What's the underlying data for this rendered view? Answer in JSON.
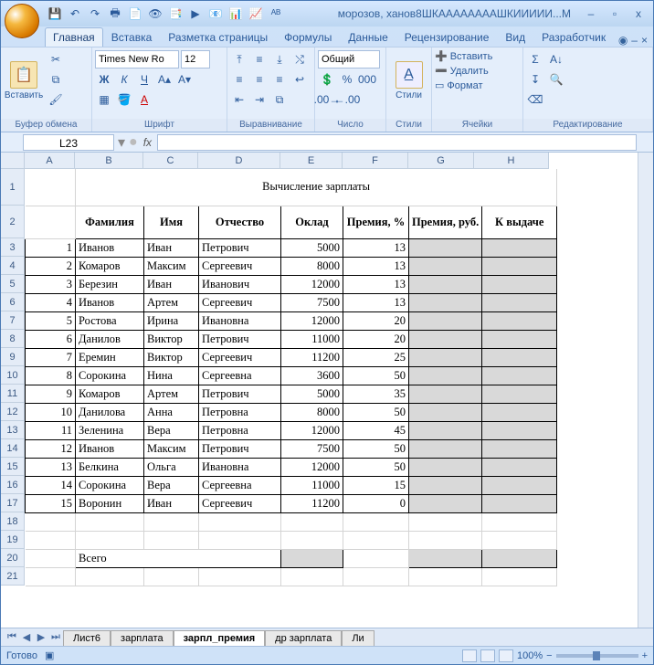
{
  "window": {
    "title": "морозов, ханов8ШКААААААААШКИИИИИ...М",
    "min": "–",
    "max": "▫",
    "close": "x"
  },
  "qat": [
    "💾",
    "↶",
    "↷",
    "🖶",
    "📄",
    "👁",
    "📑",
    "▶",
    "📧",
    "📊",
    "📈",
    "ᴬᴮ"
  ],
  "tabs": {
    "items": [
      "Главная",
      "Вставка",
      "Разметка страницы",
      "Формулы",
      "Данные",
      "Рецензирование",
      "Вид",
      "Разработчик"
    ],
    "active": 0
  },
  "ribbon": {
    "g_clip": "Буфер обмена",
    "g_font": "Шрифт",
    "g_align": "Выравнивание",
    "g_num": "Число",
    "g_styles": "Стили",
    "g_cells": "Ячейки",
    "g_edit": "Редактирование",
    "paste": "Вставить",
    "font_name": "Times New Ro",
    "font_size": "12",
    "num_fmt": "Общий",
    "styles_btn": "Стили",
    "c_insert": "Вставить",
    "c_delete": "Удалить",
    "c_format": "Формат"
  },
  "namebox": "L23",
  "columns": {
    "letters": [
      "A",
      "B",
      "C",
      "D",
      "E",
      "F",
      "G",
      "H"
    ],
    "widths": [
      55,
      75,
      60,
      90,
      68,
      72,
      72,
      82
    ]
  },
  "rows": {
    "count": 21,
    "r1_h": 40,
    "r2_h": 36,
    "std_h": 20
  },
  "doc": {
    "title": "Вычисление зарплаты",
    "headers": [
      "",
      "Фамилия",
      "Имя",
      "Отчество",
      "Оклад",
      "Премия, %",
      "Премия, руб.",
      "К выдаче"
    ],
    "total_label": "Всего",
    "data": [
      [
        1,
        "Иванов",
        "Иван",
        "Петрович",
        5000,
        13
      ],
      [
        2,
        "Комаров",
        "Максим",
        "Сергеевич",
        8000,
        13
      ],
      [
        3,
        "Березин",
        "Иван",
        "Иванович",
        12000,
        13
      ],
      [
        4,
        "Иванов",
        "Артем",
        "Сергеевич",
        7500,
        13
      ],
      [
        5,
        "Ростова",
        "Ирина",
        "Ивановна",
        12000,
        20
      ],
      [
        6,
        "Данилов",
        "Виктор",
        "Петрович",
        11000,
        20
      ],
      [
        7,
        "Еремин",
        "Виктор",
        "Сергеевич",
        11200,
        25
      ],
      [
        8,
        "Сорокина",
        "Нина",
        "Сергеевна",
        3600,
        50
      ],
      [
        9,
        "Комаров",
        "Артем",
        "Петрович",
        5000,
        35
      ],
      [
        10,
        "Данилова",
        "Анна",
        "Петровна",
        8000,
        50
      ],
      [
        11,
        "Зеленина",
        "Вера",
        "Петровна",
        12000,
        45
      ],
      [
        12,
        "Иванов",
        "Максим",
        "Петрович",
        7500,
        50
      ],
      [
        13,
        "Белкина",
        "Ольга",
        "Ивановна",
        12000,
        50
      ],
      [
        14,
        "Сорокина",
        "Вера",
        "Сергеевна",
        11000,
        15
      ],
      [
        15,
        "Воронин",
        "Иван",
        "Сергеевич",
        11200,
        0
      ]
    ]
  },
  "sheet_tabs": {
    "items": [
      "Лист6",
      "зарплата",
      "зарпл_премия",
      "др зарплата",
      "Ли"
    ],
    "active": 2
  },
  "status": {
    "ready": "Готово",
    "zoom": "100%"
  }
}
